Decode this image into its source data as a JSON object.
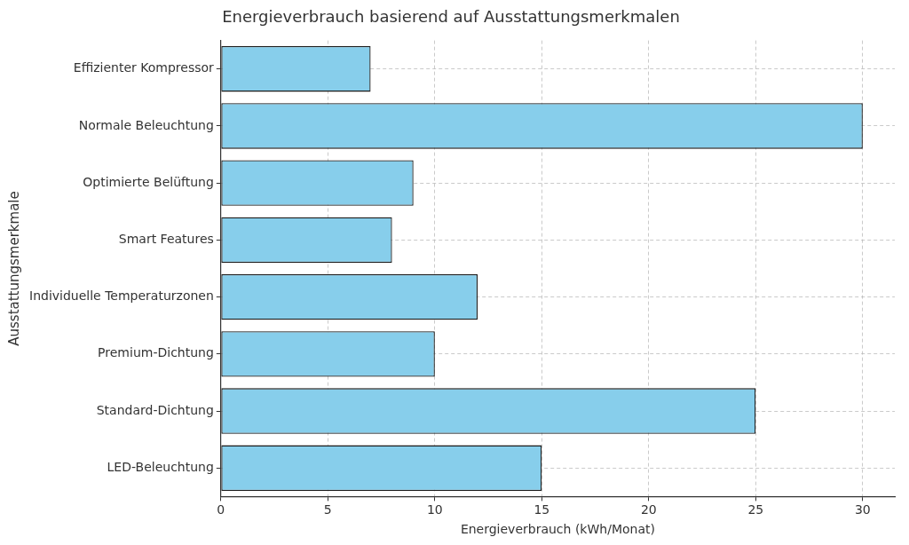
{
  "chart_data": {
    "type": "bar",
    "orientation": "horizontal",
    "title": "Energieverbrauch basierend auf Ausstattungsmerkmalen",
    "x_label": "Energieverbrauch (kWh/Monat)",
    "y_label": "Ausstattungsmerkmale",
    "categories": [
      "Effizienter Kompressor",
      "Normale Beleuchtung",
      "Optimierte Belüftung",
      "Smart Features",
      "Individuelle Temperaturzonen",
      "Premium-Dichtung",
      "Standard-Dichtung",
      "LED-Beleuchtung"
    ],
    "values": [
      7,
      30,
      9,
      8,
      12,
      10,
      25,
      15
    ],
    "color": "#87ceeb",
    "xlim": [
      0,
      31.5
    ],
    "xticks": [
      0,
      5,
      10,
      15,
      20,
      25,
      30
    ],
    "grid": true
  }
}
